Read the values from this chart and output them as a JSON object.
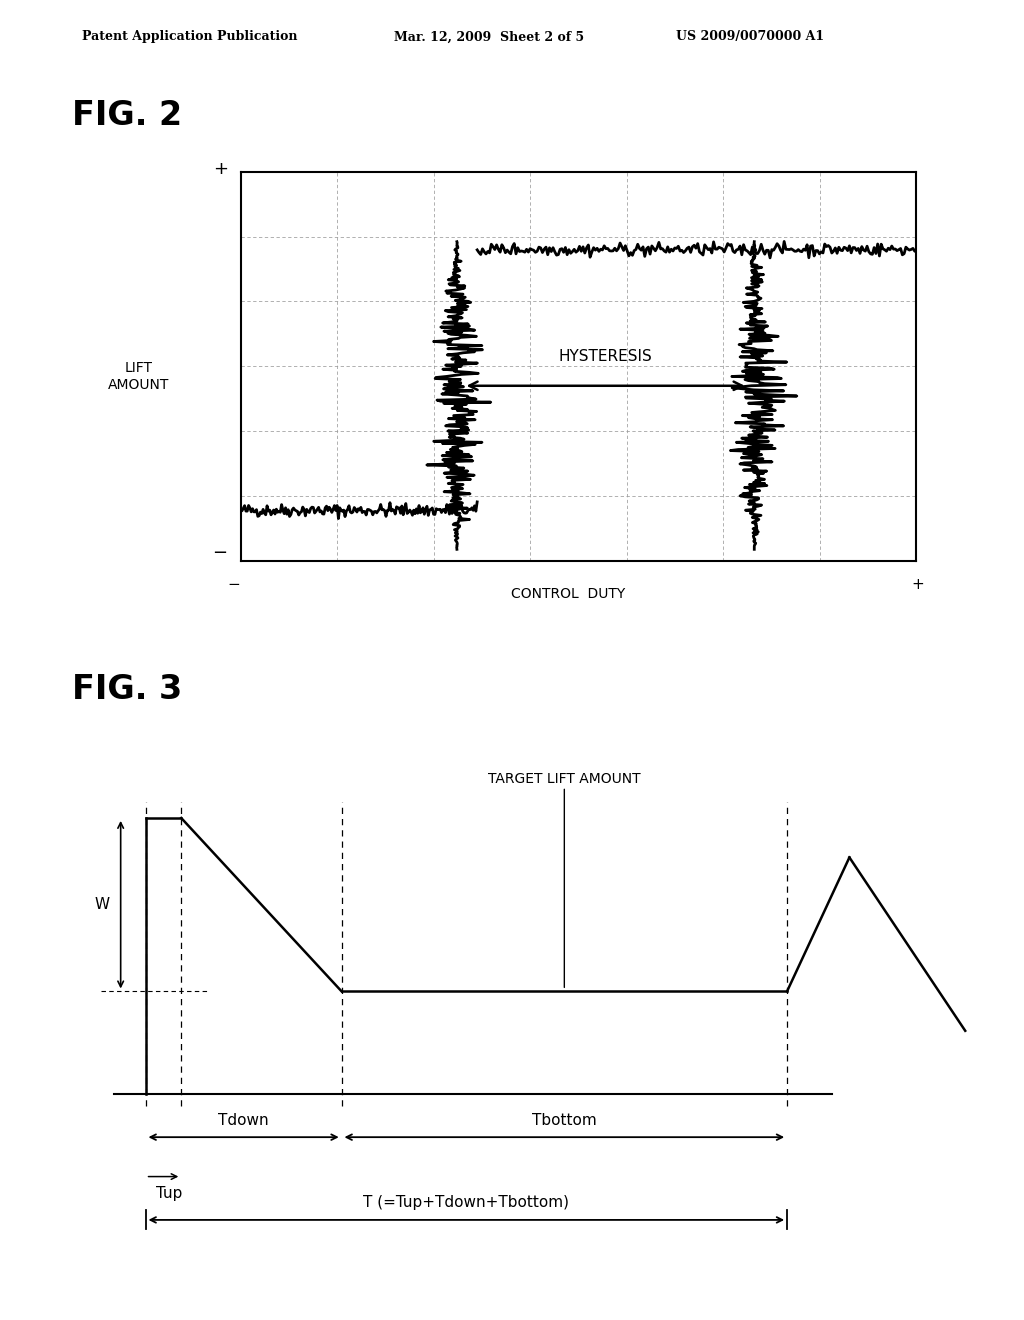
{
  "header_left": "Patent Application Publication",
  "header_mid": "Mar. 12, 2009  Sheet 2 of 5",
  "header_right": "US 2009/0070000 A1",
  "fig2_label": "FIG. 2",
  "fig2_ylabel": "LIFT\nAMOUNT",
  "fig2_xlabel": "CONTROL  DUTY",
  "fig2_plus_top": "+",
  "fig2_minus_bottom": "−",
  "fig2_minus_left": "−",
  "fig2_plus_right": "+",
  "fig2_hysteresis_text": "HYSTERESIS",
  "fig3_label": "FIG. 3",
  "fig3_target_label": "TARGET LIFT AMOUNT",
  "fig3_tup": "Tup",
  "fig3_tdown": "Tdown",
  "fig3_tbottom": "Tbottom",
  "fig3_T": "T (=Tup+Tdown+Tbottom)",
  "fig3_W": "W",
  "background_color": "#ffffff",
  "line_color": "#000000",
  "text_color": "#000000"
}
